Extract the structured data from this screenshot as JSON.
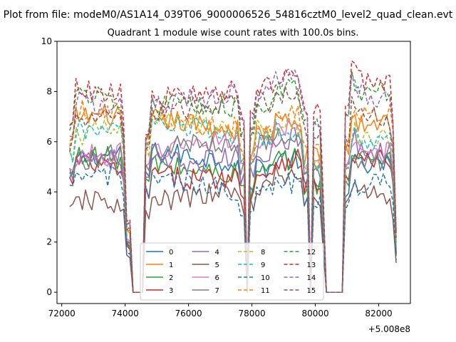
{
  "figure": {
    "suptitle": "Plot from file: modeM0/AS1A14_039T06_9000006526_54816cztM0_level2_quad_clean.evt"
  },
  "chart_data": {
    "type": "line",
    "title": "Quadrant 1 module wise count rates with 100.0s bins.",
    "xlabel": "",
    "ylabel": "",
    "x_offset_label": "+5.008e8",
    "xlim": [
      71850,
      83000
    ],
    "ylim": [
      -0.45,
      10.0
    ],
    "xticks": [
      72000,
      74000,
      76000,
      78000,
      80000,
      82000
    ],
    "xtick_labels": [
      "72000",
      "74000",
      "76000",
      "78000",
      "80000",
      "82000"
    ],
    "yticks": [
      0,
      2,
      4,
      6,
      8,
      10
    ],
    "ytick_labels": [
      "0",
      "2",
      "4",
      "6",
      "8",
      "10"
    ],
    "grid": false,
    "legend_placement": "lower center",
    "legend_columns": 4,
    "segments": [
      {
        "start": 72250,
        "end": 74000
      },
      {
        "start": 74650,
        "end": 77750
      },
      {
        "start": 77950,
        "end": 79750
      },
      {
        "start": 79950,
        "end": 80200
      },
      {
        "start": 80950,
        "end": 82550
      }
    ],
    "gaps": [
      {
        "start": 74000,
        "end": 74650,
        "low_start": 74250,
        "low_end": 74550,
        "edge_scale": 0.35
      },
      {
        "start": 77750,
        "end": 77950,
        "low_start": 77850,
        "low_end": 77850,
        "edge_scale": 0.4
      },
      {
        "start": 79750,
        "end": 79950,
        "low_start": 79850,
        "low_end": 79850,
        "edge_scale": 0.42
      },
      {
        "start": 80200,
        "end": 80950,
        "low_start": 80300,
        "low_end": 80850,
        "edge_scale": 0.45
      }
    ],
    "series": [
      {
        "name": "0",
        "color": "#1f77b4",
        "dash": "solid",
        "mean": 5.2
      },
      {
        "name": "1",
        "color": "#ff7f0e",
        "dash": "solid",
        "mean": 6.7
      },
      {
        "name": "2",
        "color": "#2ca02c",
        "dash": "solid",
        "mean": 5.1
      },
      {
        "name": "3",
        "color": "#d62728",
        "dash": "solid",
        "mean": 4.9
      },
      {
        "name": "4",
        "color": "#9467bd",
        "dash": "solid",
        "mean": 5.5
      },
      {
        "name": "5",
        "color": "#8c564b",
        "dash": "solid",
        "mean": 3.9
      },
      {
        "name": "6",
        "color": "#e377c2",
        "dash": "solid",
        "mean": 5.8
      },
      {
        "name": "7",
        "color": "#7f7f7f",
        "dash": "solid",
        "mean": 5.6
      },
      {
        "name": "8",
        "color": "#bcbd22",
        "dash": "dashed",
        "mean": 6.4
      },
      {
        "name": "9",
        "color": "#17becf",
        "dash": "dashed",
        "mean": 6.3
      },
      {
        "name": "10",
        "color": "#1f77b4",
        "dash": "dashed",
        "mean": 4.3
      },
      {
        "name": "11",
        "color": "#ff7f0e",
        "dash": "dashed",
        "mean": 6.9
      },
      {
        "name": "12",
        "color": "#2ca02c",
        "dash": "dashed",
        "mean": 7.7
      },
      {
        "name": "13",
        "color": "#d62728",
        "dash": "dashed",
        "mean": 8.1
      },
      {
        "name": "14",
        "color": "#9467bd",
        "dash": "dashed",
        "mean": 7.8
      },
      {
        "name": "15",
        "color": "#8c564b",
        "dash": "dashed",
        "mean": 7.2
      }
    ]
  }
}
